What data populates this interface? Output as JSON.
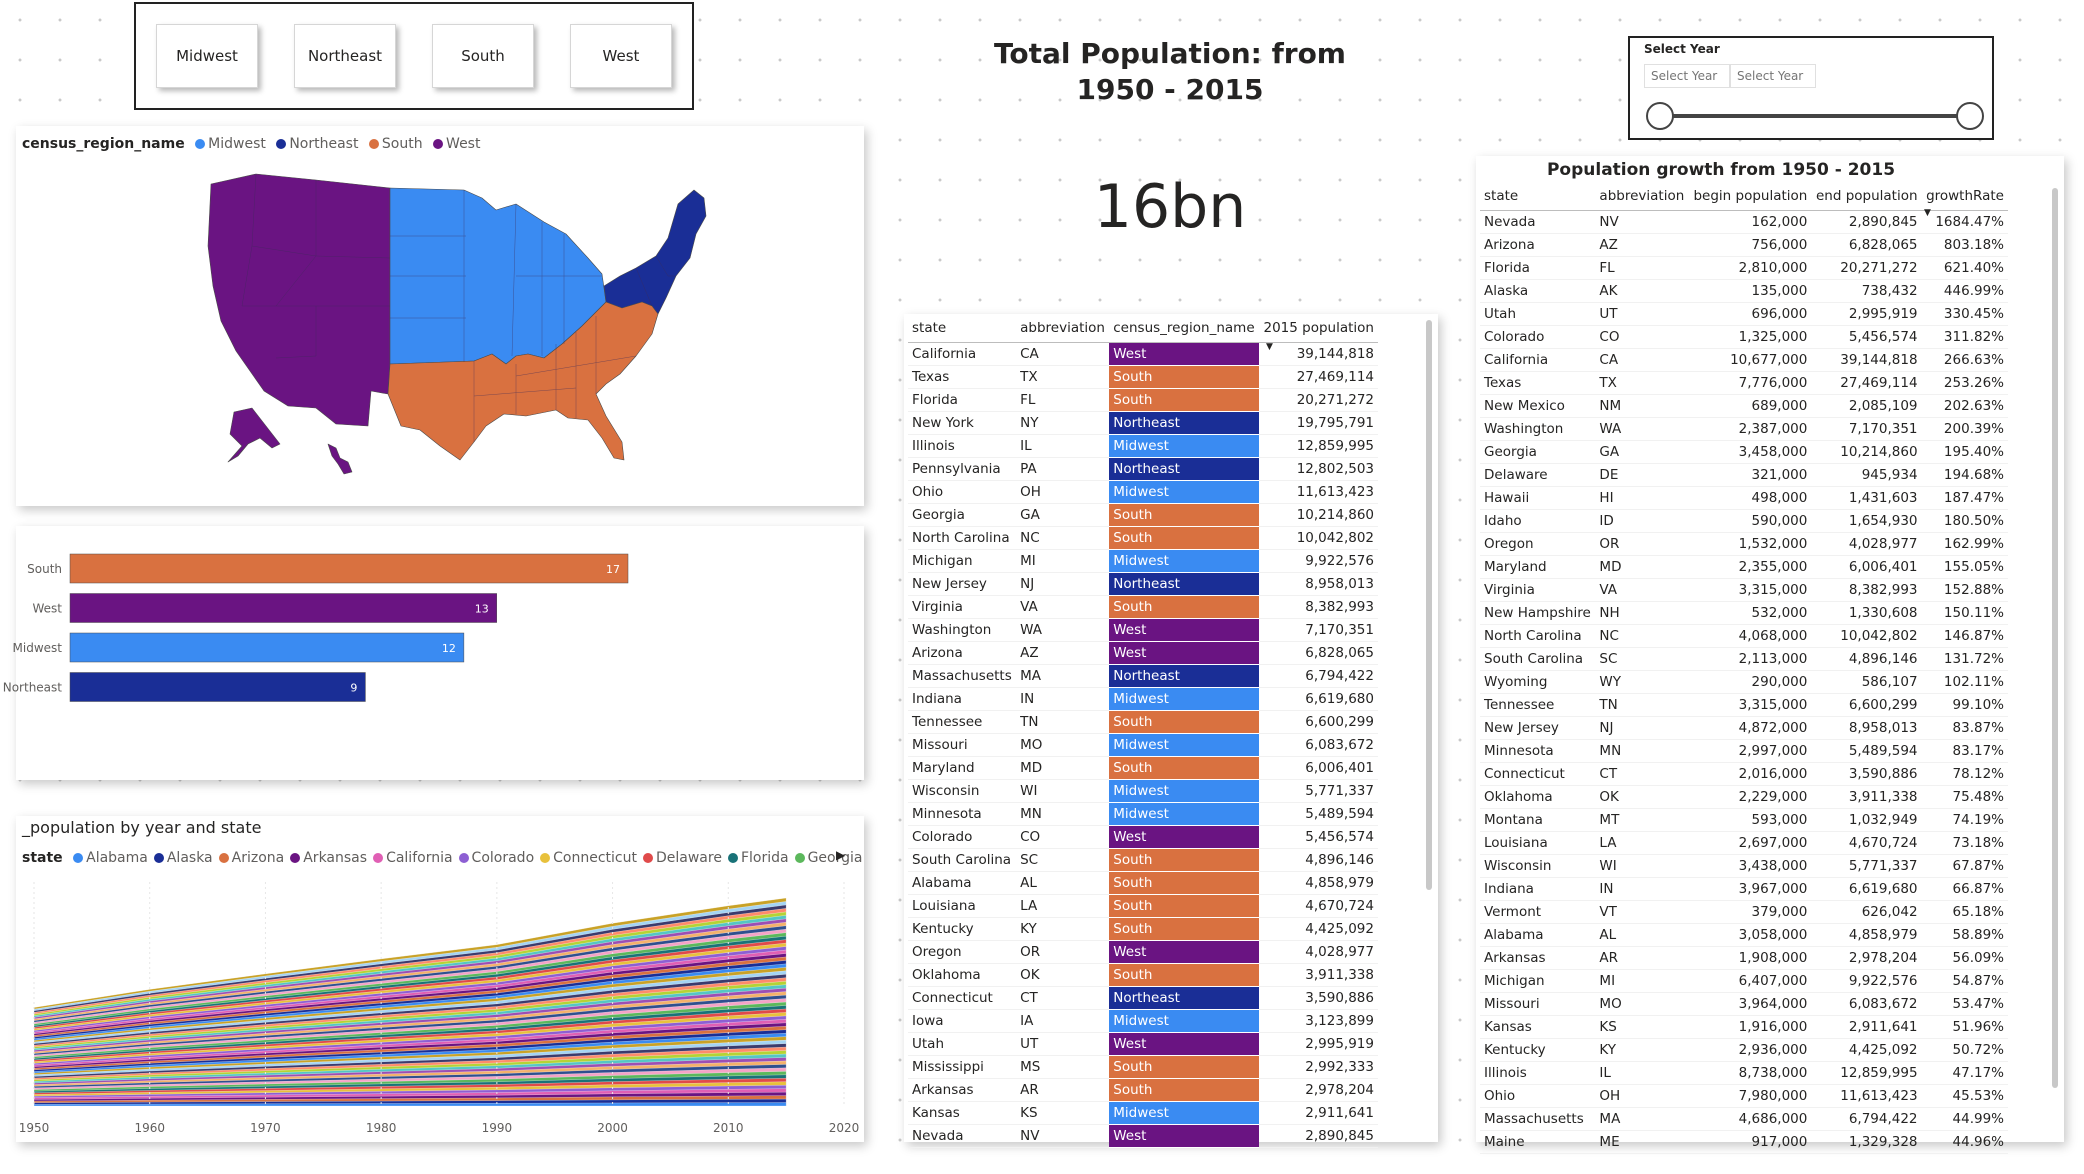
{
  "regions": [
    "Midwest",
    "Northeast",
    "South",
    "West"
  ],
  "title": "Total Population: from 1950 - 2015",
  "kpi": "16bn",
  "year_slicer": {
    "label": "Select Year",
    "start_placeholder": "Select Year",
    "end_placeholder": "Select Year"
  },
  "region_colors": {
    "Midwest": "#3a8bf2",
    "Northeast": "#1a2e96",
    "South": "#d97140",
    "West": "#6a1482"
  },
  "map": {
    "legend_title": "census_region_name",
    "legend": [
      "Midwest",
      "Northeast",
      "South",
      "West"
    ]
  },
  "bar_chart": {
    "chart_data": {
      "type": "bar",
      "categories": [
        "South",
        "West",
        "Midwest",
        "Northeast"
      ],
      "values": [
        17,
        13,
        12,
        9
      ],
      "colors": [
        "#d97140",
        "#6a1482",
        "#3a8bf2",
        "#1a2e96"
      ],
      "xlim": [
        0,
        17
      ]
    }
  },
  "area_chart": {
    "title": "_population by year and state",
    "legend_title": "state",
    "legend": [
      {
        "name": "Alabama",
        "color": "#3a8bf2"
      },
      {
        "name": "Alaska",
        "color": "#1a2e96"
      },
      {
        "name": "Arizona",
        "color": "#d97140"
      },
      {
        "name": "Arkansas",
        "color": "#6a1482"
      },
      {
        "name": "California",
        "color": "#e05fb4"
      },
      {
        "name": "Colorado",
        "color": "#8d5fd3"
      },
      {
        "name": "Connecticut",
        "color": "#e8c13c"
      },
      {
        "name": "Delaware",
        "color": "#e04a4a"
      },
      {
        "name": "Florida",
        "color": "#197278"
      },
      {
        "name": "Georgia",
        "color": "#5cb85c"
      }
    ],
    "chart_data": {
      "type": "area",
      "stacked": true,
      "x": [
        1950,
        1960,
        1970,
        1980,
        1990,
        2000,
        2010,
        2015
      ],
      "x_ticks": [
        "1950",
        "1960",
        "1970",
        "1980",
        "1990",
        "2000",
        "2010",
        "2020"
      ],
      "xlim": [
        1950,
        2020
      ],
      "total": [
        152000000,
        180000000,
        204000000,
        227000000,
        249000000,
        282000000,
        309000000,
        321000000
      ]
    }
  },
  "state_table": {
    "columns": [
      "state",
      "abbreviation",
      "census_region_name",
      "2015 population"
    ],
    "rows": [
      [
        "California",
        "CA",
        "West",
        "39,144,818"
      ],
      [
        "Texas",
        "TX",
        "South",
        "27,469,114"
      ],
      [
        "Florida",
        "FL",
        "South",
        "20,271,272"
      ],
      [
        "New York",
        "NY",
        "Northeast",
        "19,795,791"
      ],
      [
        "Illinois",
        "IL",
        "Midwest",
        "12,859,995"
      ],
      [
        "Pennsylvania",
        "PA",
        "Northeast",
        "12,802,503"
      ],
      [
        "Ohio",
        "OH",
        "Midwest",
        "11,613,423"
      ],
      [
        "Georgia",
        "GA",
        "South",
        "10,214,860"
      ],
      [
        "North Carolina",
        "NC",
        "South",
        "10,042,802"
      ],
      [
        "Michigan",
        "MI",
        "Midwest",
        "9,922,576"
      ],
      [
        "New Jersey",
        "NJ",
        "Northeast",
        "8,958,013"
      ],
      [
        "Virginia",
        "VA",
        "South",
        "8,382,993"
      ],
      [
        "Washington",
        "WA",
        "West",
        "7,170,351"
      ],
      [
        "Arizona",
        "AZ",
        "West",
        "6,828,065"
      ],
      [
        "Massachusetts",
        "MA",
        "Northeast",
        "6,794,422"
      ],
      [
        "Indiana",
        "IN",
        "Midwest",
        "6,619,680"
      ],
      [
        "Tennessee",
        "TN",
        "South",
        "6,600,299"
      ],
      [
        "Missouri",
        "MO",
        "Midwest",
        "6,083,672"
      ],
      [
        "Maryland",
        "MD",
        "South",
        "6,006,401"
      ],
      [
        "Wisconsin",
        "WI",
        "Midwest",
        "5,771,337"
      ],
      [
        "Minnesota",
        "MN",
        "Midwest",
        "5,489,594"
      ],
      [
        "Colorado",
        "CO",
        "West",
        "5,456,574"
      ],
      [
        "South Carolina",
        "SC",
        "South",
        "4,896,146"
      ],
      [
        "Alabama",
        "AL",
        "South",
        "4,858,979"
      ],
      [
        "Louisiana",
        "LA",
        "South",
        "4,670,724"
      ],
      [
        "Kentucky",
        "KY",
        "South",
        "4,425,092"
      ],
      [
        "Oregon",
        "OR",
        "West",
        "4,028,977"
      ],
      [
        "Oklahoma",
        "OK",
        "South",
        "3,911,338"
      ],
      [
        "Connecticut",
        "CT",
        "Northeast",
        "3,590,886"
      ],
      [
        "Iowa",
        "IA",
        "Midwest",
        "3,123,899"
      ],
      [
        "Utah",
        "UT",
        "West",
        "2,995,919"
      ],
      [
        "Mississippi",
        "MS",
        "South",
        "2,992,333"
      ],
      [
        "Arkansas",
        "AR",
        "South",
        "2,978,204"
      ],
      [
        "Kansas",
        "KS",
        "Midwest",
        "2,911,641"
      ],
      [
        "Nevada",
        "NV",
        "West",
        "2,890,845"
      ]
    ]
  },
  "growth_table": {
    "title": "Population growth from 1950 - 2015",
    "columns": [
      "state",
      "abbreviation",
      "begin population",
      "end population",
      "growthRate"
    ],
    "rows": [
      [
        "Nevada",
        "NV",
        "162,000",
        "2,890,845",
        "1684.47%"
      ],
      [
        "Arizona",
        "AZ",
        "756,000",
        "6,828,065",
        "803.18%"
      ],
      [
        "Florida",
        "FL",
        "2,810,000",
        "20,271,272",
        "621.40%"
      ],
      [
        "Alaska",
        "AK",
        "135,000",
        "738,432",
        "446.99%"
      ],
      [
        "Utah",
        "UT",
        "696,000",
        "2,995,919",
        "330.45%"
      ],
      [
        "Colorado",
        "CO",
        "1,325,000",
        "5,456,574",
        "311.82%"
      ],
      [
        "California",
        "CA",
        "10,677,000",
        "39,144,818",
        "266.63%"
      ],
      [
        "Texas",
        "TX",
        "7,776,000",
        "27,469,114",
        "253.26%"
      ],
      [
        "New Mexico",
        "NM",
        "689,000",
        "2,085,109",
        "202.63%"
      ],
      [
        "Washington",
        "WA",
        "2,387,000",
        "7,170,351",
        "200.39%"
      ],
      [
        "Georgia",
        "GA",
        "3,458,000",
        "10,214,860",
        "195.40%"
      ],
      [
        "Delaware",
        "DE",
        "321,000",
        "945,934",
        "194.68%"
      ],
      [
        "Hawaii",
        "HI",
        "498,000",
        "1,431,603",
        "187.47%"
      ],
      [
        "Idaho",
        "ID",
        "590,000",
        "1,654,930",
        "180.50%"
      ],
      [
        "Oregon",
        "OR",
        "1,532,000",
        "4,028,977",
        "162.99%"
      ],
      [
        "Maryland",
        "MD",
        "2,355,000",
        "6,006,401",
        "155.05%"
      ],
      [
        "Virginia",
        "VA",
        "3,315,000",
        "8,382,993",
        "152.88%"
      ],
      [
        "New Hampshire",
        "NH",
        "532,000",
        "1,330,608",
        "150.11%"
      ],
      [
        "North Carolina",
        "NC",
        "4,068,000",
        "10,042,802",
        "146.87%"
      ],
      [
        "South Carolina",
        "SC",
        "2,113,000",
        "4,896,146",
        "131.72%"
      ],
      [
        "Wyoming",
        "WY",
        "290,000",
        "586,107",
        "102.11%"
      ],
      [
        "Tennessee",
        "TN",
        "3,315,000",
        "6,600,299",
        "99.10%"
      ],
      [
        "New Jersey",
        "NJ",
        "4,872,000",
        "8,958,013",
        "83.87%"
      ],
      [
        "Minnesota",
        "MN",
        "2,997,000",
        "5,489,594",
        "83.17%"
      ],
      [
        "Connecticut",
        "CT",
        "2,016,000",
        "3,590,886",
        "78.12%"
      ],
      [
        "Oklahoma",
        "OK",
        "2,229,000",
        "3,911,338",
        "75.48%"
      ],
      [
        "Montana",
        "MT",
        "593,000",
        "1,032,949",
        "74.19%"
      ],
      [
        "Louisiana",
        "LA",
        "2,697,000",
        "4,670,724",
        "73.18%"
      ],
      [
        "Wisconsin",
        "WI",
        "3,438,000",
        "5,771,337",
        "67.87%"
      ],
      [
        "Indiana",
        "IN",
        "3,967,000",
        "6,619,680",
        "66.87%"
      ],
      [
        "Vermont",
        "VT",
        "379,000",
        "626,042",
        "65.18%"
      ],
      [
        "Alabama",
        "AL",
        "3,058,000",
        "4,858,979",
        "58.89%"
      ],
      [
        "Arkansas",
        "AR",
        "1,908,000",
        "2,978,204",
        "56.09%"
      ],
      [
        "Michigan",
        "MI",
        "6,407,000",
        "9,922,576",
        "54.87%"
      ],
      [
        "Missouri",
        "MO",
        "3,964,000",
        "6,083,672",
        "53.47%"
      ],
      [
        "Kansas",
        "KS",
        "1,916,000",
        "2,911,641",
        "51.96%"
      ],
      [
        "Kentucky",
        "KY",
        "2,936,000",
        "4,425,092",
        "50.72%"
      ],
      [
        "Illinois",
        "IL",
        "8,738,000",
        "12,859,995",
        "47.17%"
      ],
      [
        "Ohio",
        "OH",
        "7,980,000",
        "11,613,423",
        "45.53%"
      ],
      [
        "Massachusetts",
        "MA",
        "4,686,000",
        "6,794,422",
        "44.99%"
      ],
      [
        "Maine",
        "ME",
        "917,000",
        "1,329,328",
        "44.96%"
      ]
    ]
  }
}
